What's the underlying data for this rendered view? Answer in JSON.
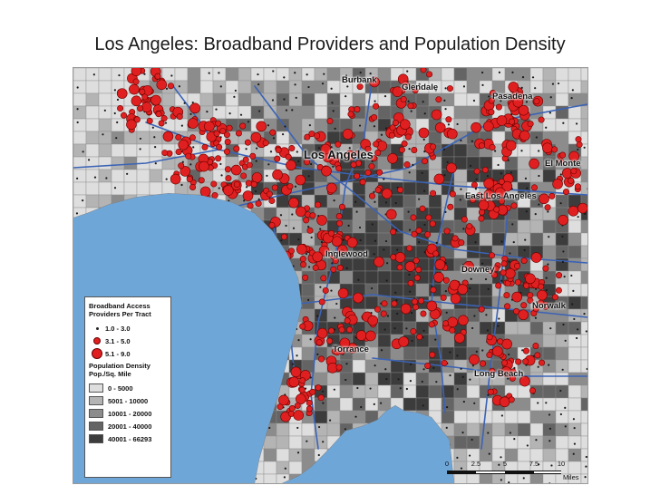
{
  "title": "Los Angeles: Broadband Providers and Population Density",
  "cities": [
    {
      "name": "Burbank",
      "size": "small"
    },
    {
      "name": "Glendale",
      "size": "small"
    },
    {
      "name": "Pasadena",
      "size": "small"
    },
    {
      "name": "Los Angeles",
      "size": "big"
    },
    {
      "name": "El Monte",
      "size": "small"
    },
    {
      "name": "East Los Angeles",
      "size": "small"
    },
    {
      "name": "Inglewood",
      "size": "small"
    },
    {
      "name": "Downey",
      "size": "small"
    },
    {
      "name": "Norwalk",
      "size": "small"
    },
    {
      "name": "Torrance",
      "size": "small"
    },
    {
      "name": "Long Beach",
      "size": "small"
    }
  ],
  "legend": {
    "providers_title_1": "Broadband Access",
    "providers_title_2": "Providers Per Tract",
    "providers": [
      {
        "label": "1.0 - 3.0"
      },
      {
        "label": "3.1 - 5.0"
      },
      {
        "label": "5.1 - 9.0"
      }
    ],
    "density_title_1": "Population Density",
    "density_title_2": "Pop./Sq. Mile",
    "density": [
      {
        "label": "0 - 5000",
        "color": "#dedede"
      },
      {
        "label": "5001 - 10000",
        "color": "#b4b4b4"
      },
      {
        "label": "10001 - 20000",
        "color": "#8c8c8c"
      },
      {
        "label": "20001 - 40000",
        "color": "#646464"
      },
      {
        "label": "40001 - 66293",
        "color": "#3c3c3c"
      }
    ]
  },
  "scale": {
    "ticks": [
      "0",
      "2.5",
      "5",
      "7.5",
      "10"
    ],
    "unit": "Miles"
  },
  "colors": {
    "ocean": "#6fa6d8",
    "provider_dot": "#e02020",
    "highway": "#3b63b5"
  }
}
